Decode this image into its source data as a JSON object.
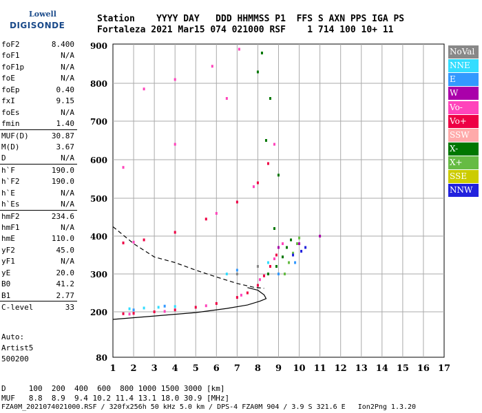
{
  "logo": {
    "line1": "Lowell",
    "line2": "DIGISONDE"
  },
  "header": {
    "line1": "Station    YYYY DAY   DDD HHMMSS P1  FFS S AXN PPS IGA PS",
    "line2": "Fortaleza 2021 Mar15 074 021000 RSF    1 714 100 10+ 11"
  },
  "params": [
    {
      "name": "foF2",
      "value": "8.400"
    },
    {
      "name": "foF1",
      "value": "N/A"
    },
    {
      "name": "foF1p",
      "value": "N/A"
    },
    {
      "name": "foE",
      "value": "N/A"
    },
    {
      "name": "foEp",
      "value": "0.40"
    },
    {
      "name": "fxI",
      "value": "9.15"
    },
    {
      "name": "foEs",
      "value": "N/A"
    },
    {
      "name": "fmin",
      "value": "1.40"
    },
    {
      "name": "MUF(D)",
      "value": "30.87"
    },
    {
      "name": "M(D)",
      "value": "3.67"
    },
    {
      "name": "D",
      "value": "N/A"
    },
    {
      "name": "h`F",
      "value": "190.0"
    },
    {
      "name": "h`F2",
      "value": "190.0"
    },
    {
      "name": "h`E",
      "value": "N/A"
    },
    {
      "name": "h`Es",
      "value": "N/A"
    },
    {
      "name": "hmF2",
      "value": "234.6"
    },
    {
      "name": "hmF1",
      "value": "N/A"
    },
    {
      "name": "hmE",
      "value": "110.0"
    },
    {
      "name": "yF2",
      "value": "45.0"
    },
    {
      "name": "yF1",
      "value": "N/A"
    },
    {
      "name": "yE",
      "value": "20.0"
    },
    {
      "name": "B0",
      "value": "41.2"
    },
    {
      "name": "B1",
      "value": "2.77"
    },
    {
      "name": "C-level",
      "value": "33"
    }
  ],
  "auto": {
    "line1": "Auto:",
    "line2": "Artist5",
    "line3": "500200"
  },
  "legend": [
    {
      "label": "NoVal",
      "color": "#888888"
    },
    {
      "label": "NNE",
      "color": "#33ddff"
    },
    {
      "label": "E",
      "color": "#3399ff"
    },
    {
      "label": "W",
      "color": "#aa00aa"
    },
    {
      "label": "Vo-",
      "color": "#ff44bb"
    },
    {
      "label": "Vo+",
      "color": "#ee0044"
    },
    {
      "label": "SSW",
      "color": "#ffaaaa"
    },
    {
      "label": "X-",
      "color": "#007700"
    },
    {
      "label": "X+",
      "color": "#66bb44"
    },
    {
      "label": "SSE",
      "color": "#cccc00"
    },
    {
      "label": "NNW",
      "color": "#2222dd"
    }
  ],
  "footer": {
    "line1": "D     100  200  400  600  800 1000 1500 3000 [km]",
    "line2": "MUF   8.8  8.9  9.4 10.2 11.4 13.1 18.0 30.9 [MHz]",
    "line3": "FZA0M_2021074021000.RSF / 320fx256h 50 kHz 5.0 km / DPS-4 FZA0M 904 / 3.9 S 321.6 E   Ion2Png 1.3.20"
  },
  "chart_data": {
    "type": "scatter",
    "title": "",
    "xlabel": "",
    "ylabel": "",
    "xlim": [
      1,
      17
    ],
    "ylim": [
      80,
      900
    ],
    "x_ticks": [
      1,
      2,
      3,
      4,
      5,
      6,
      7,
      8,
      9,
      10,
      11,
      12,
      13,
      14,
      15,
      16,
      17
    ],
    "y_ticks": [
      80,
      200,
      300,
      400,
      500,
      600,
      700,
      800,
      900
    ],
    "grid": true,
    "legend_position": "right",
    "series": [
      {
        "name": "Vo+",
        "color": "#ee0044",
        "points": [
          [
            1.5,
            195
          ],
          [
            2.0,
            196
          ],
          [
            3.0,
            200
          ],
          [
            4.0,
            205
          ],
          [
            5.0,
            212
          ],
          [
            6.0,
            222
          ],
          [
            7.0,
            238
          ],
          [
            7.5,
            250
          ],
          [
            8.0,
            270
          ],
          [
            8.3,
            295
          ],
          [
            8.6,
            320
          ],
          [
            8.9,
            350
          ],
          [
            1.5,
            382
          ],
          [
            2.5,
            390
          ],
          [
            4.0,
            410
          ],
          [
            5.5,
            445
          ],
          [
            7.0,
            490
          ],
          [
            8.0,
            540
          ],
          [
            8.5,
            590
          ]
        ]
      },
      {
        "name": "Vo-",
        "color": "#ff44bb",
        "points": [
          [
            1.8,
            194
          ],
          [
            3.5,
            201
          ],
          [
            5.5,
            216
          ],
          [
            7.2,
            244
          ],
          [
            8.1,
            285
          ],
          [
            8.8,
            340
          ],
          [
            9.2,
            380
          ],
          [
            2.0,
            384
          ],
          [
            6.0,
            460
          ],
          [
            7.8,
            530
          ],
          [
            8.8,
            640
          ],
          [
            1.5,
            580
          ],
          [
            4.0,
            640
          ],
          [
            6.5,
            760
          ],
          [
            2.5,
            785
          ],
          [
            4.0,
            810
          ],
          [
            5.8,
            845
          ],
          [
            7.1,
            890
          ]
        ]
      },
      {
        "name": "X-",
        "color": "#007700",
        "points": [
          [
            8.5,
            300
          ],
          [
            8.9,
            320
          ],
          [
            9.2,
            345
          ],
          [
            9.4,
            370
          ],
          [
            9.6,
            390
          ],
          [
            8.8,
            420
          ],
          [
            9.0,
            560
          ],
          [
            8.4,
            650
          ],
          [
            8.6,
            760
          ],
          [
            8.0,
            830
          ],
          [
            8.2,
            880
          ]
        ]
      },
      {
        "name": "X+",
        "color": "#66bb44",
        "points": [
          [
            9.3,
            300
          ],
          [
            9.5,
            330
          ],
          [
            9.7,
            355
          ],
          [
            9.9,
            380
          ],
          [
            10.0,
            395
          ]
        ]
      },
      {
        "name": "NNE",
        "color": "#33ddff",
        "points": [
          [
            1.8,
            208
          ],
          [
            2.5,
            210
          ],
          [
            3.2,
            212
          ],
          [
            4.0,
            214
          ],
          [
            6.5,
            300
          ],
          [
            8.5,
            330
          ]
        ]
      },
      {
        "name": "E",
        "color": "#3399ff",
        "points": [
          [
            2.0,
            205
          ],
          [
            3.5,
            215
          ],
          [
            7.0,
            310
          ],
          [
            9.0,
            300
          ],
          [
            9.8,
            330
          ]
        ]
      },
      {
        "name": "NNW",
        "color": "#2222dd",
        "points": [
          [
            10.1,
            360
          ],
          [
            10.3,
            370
          ],
          [
            9.7,
            350
          ]
        ]
      },
      {
        "name": "W",
        "color": "#aa00aa",
        "points": [
          [
            9.0,
            370
          ],
          [
            10.0,
            380
          ],
          [
            11.0,
            400
          ]
        ]
      },
      {
        "name": "NoVal",
        "color": "#888888",
        "points": [
          [
            7.0,
            300
          ],
          [
            8.0,
            320
          ]
        ]
      }
    ],
    "lines": [
      {
        "style": "solid",
        "points": [
          [
            1,
            180
          ],
          [
            3,
            189
          ],
          [
            5,
            198
          ],
          [
            6.5,
            209
          ],
          [
            7.5,
            218
          ],
          [
            8.1,
            228
          ],
          [
            8.4,
            235
          ],
          [
            8.3,
            245
          ],
          [
            8.0,
            257
          ],
          [
            7.5,
            264
          ]
        ]
      },
      {
        "style": "dashed",
        "points": [
          [
            1,
            425
          ],
          [
            2,
            380
          ],
          [
            3,
            345
          ],
          [
            4,
            330
          ],
          [
            5,
            310
          ],
          [
            6,
            292
          ],
          [
            7,
            275
          ],
          [
            7.8,
            265
          ],
          [
            8.3,
            262
          ]
        ]
      }
    ]
  }
}
